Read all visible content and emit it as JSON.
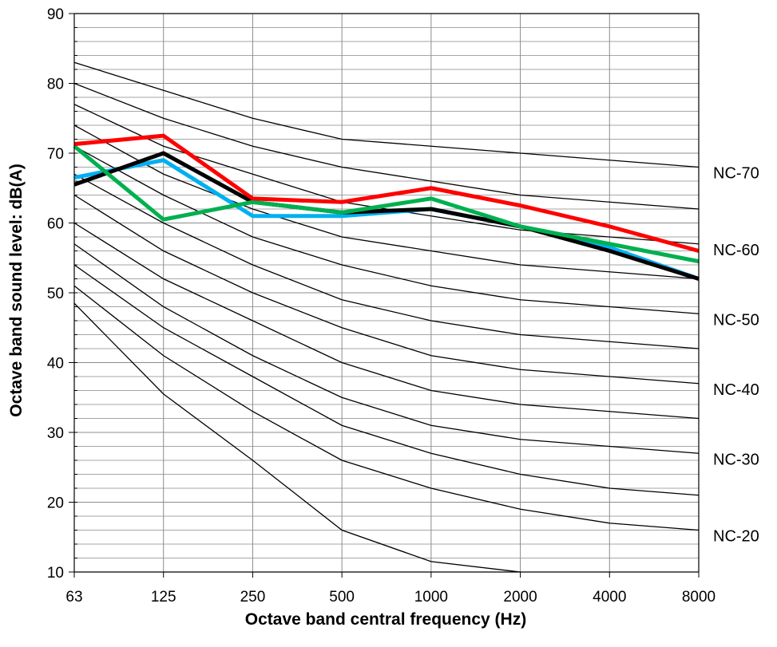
{
  "chart_data": {
    "type": "line",
    "xlabel": "Octave band central frequency (Hz)",
    "ylabel": "Octave band sound level:  dB(A)",
    "categories": [
      "63",
      "125",
      "250",
      "500",
      "1000",
      "2000",
      "4000",
      "8000"
    ],
    "ylim": [
      10,
      90
    ],
    "y_ticks": [
      "10",
      "20",
      "30",
      "40",
      "50",
      "60",
      "70",
      "80",
      "90"
    ],
    "grid": "minor-horizontal-every-2dB-and-vertical",
    "nc_curves": [
      {
        "label": "",
        "values": [
          48.5,
          35.5,
          26,
          16,
          11.5,
          10,
          null,
          null
        ]
      },
      {
        "label": "NC-20",
        "values": [
          51,
          41,
          33,
          26,
          22,
          19,
          17,
          16
        ]
      },
      {
        "label": "",
        "values": [
          54,
          45,
          38,
          31,
          27,
          24,
          22,
          21
        ]
      },
      {
        "label": "NC-30",
        "values": [
          57,
          48,
          41,
          35,
          31,
          29,
          28,
          27
        ]
      },
      {
        "label": "",
        "values": [
          60,
          52,
          46,
          40,
          36,
          34,
          33,
          32
        ]
      },
      {
        "label": "NC-40",
        "values": [
          64,
          56,
          50,
          45,
          41,
          39,
          38,
          37
        ]
      },
      {
        "label": "",
        "values": [
          67,
          60,
          54,
          49,
          46,
          44,
          43,
          42
        ]
      },
      {
        "label": "NC-50",
        "values": [
          71,
          64,
          58,
          54,
          51,
          49,
          48,
          47
        ]
      },
      {
        "label": "",
        "values": [
          74,
          67,
          62,
          58,
          56,
          54,
          53,
          52
        ]
      },
      {
        "label": "NC-60",
        "values": [
          77,
          71,
          67,
          63,
          61,
          59,
          58,
          57
        ]
      },
      {
        "label": "",
        "values": [
          80,
          75,
          71,
          68,
          66,
          64,
          63,
          62
        ]
      },
      {
        "label": "NC-70",
        "values": [
          83,
          79,
          75,
          72,
          71,
          70,
          69,
          68
        ]
      }
    ],
    "series": [
      {
        "color": "#00b0f0",
        "values": [
          66.5,
          69,
          61,
          61,
          62,
          59.5,
          56.5,
          52
        ]
      },
      {
        "color": "#000000",
        "values": [
          65.5,
          70,
          63,
          61.5,
          62,
          59.5,
          56,
          52
        ]
      },
      {
        "color": "#00b050",
        "values": [
          71,
          60.5,
          63,
          61.5,
          63.5,
          59.5,
          57,
          54.5
        ]
      },
      {
        "color": "#ff0000",
        "values": [
          71.3,
          72.5,
          63.5,
          63,
          65,
          62.5,
          59.5,
          56
        ]
      }
    ]
  }
}
